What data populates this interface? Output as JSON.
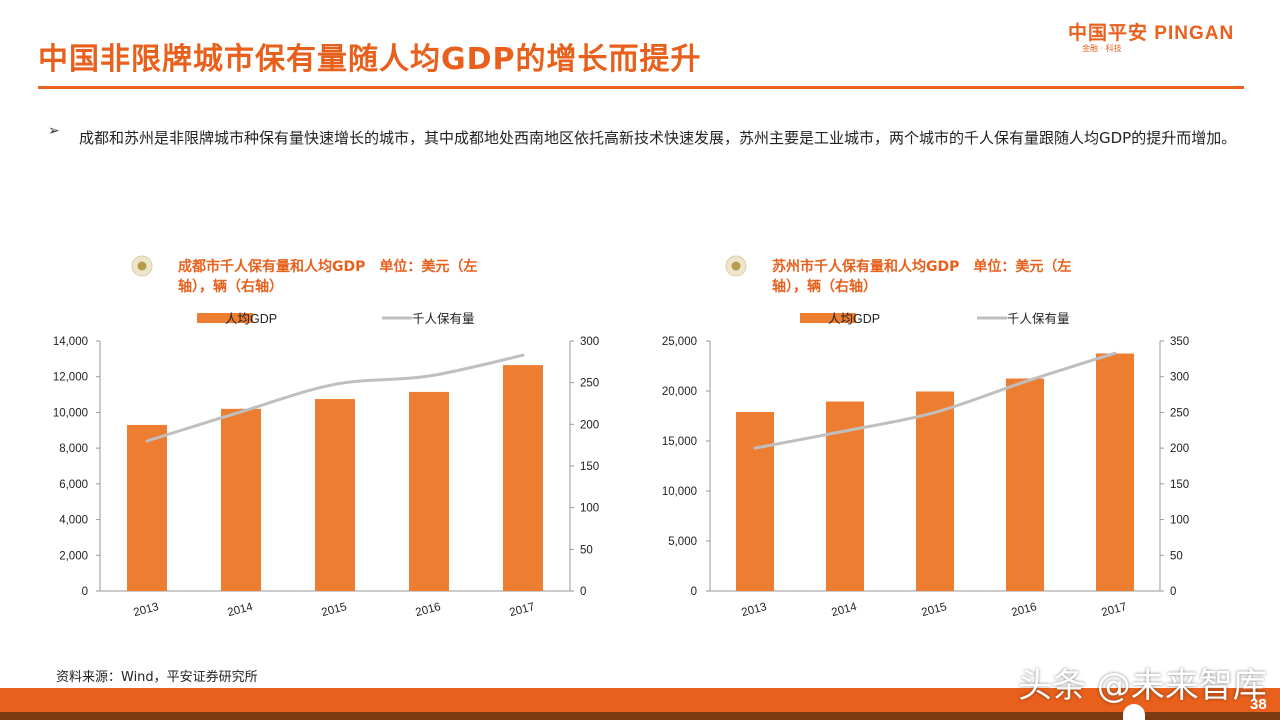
{
  "page": {
    "title": "中国非限牌城市保有量随人均GDP的增长而提升",
    "logo": {
      "main": "中国平安 PINGAN",
      "sub": "金融 · 科技"
    },
    "bullet": "成都和苏州是非限牌城市种保有量快速增长的城市，其中成都地处西南地区依托高新技术快速发展，苏州主要是工业城市，两个城市的千人保有量跟随人均GDP的提升而增加。",
    "source": "资料来源：Wind，平安证券研究所",
    "watermark": "头条 @未来智库",
    "page_number": "38"
  },
  "colors": {
    "accent": "#e8601c",
    "bar": "#ed7d31",
    "line": "#bfbfbf"
  },
  "chart_data": [
    {
      "type": "bar",
      "title": "成都市千人保有量和人均GDP　单位：美元（左轴），辆（右轴）",
      "title_lines": [
        "成都市千人保有量和人均GDP　单位：美元（左",
        "轴），辆（右轴）"
      ],
      "legend": [
        "人均GDP",
        "千人保有量"
      ],
      "categories": [
        "2013",
        "2014",
        "2015",
        "2016",
        "2017"
      ],
      "series": [
        {
          "name": "人均GDP",
          "type": "bar",
          "axis": "left",
          "values": [
            9300,
            10200,
            10750,
            11150,
            12650
          ]
        },
        {
          "name": "千人保有量",
          "type": "line",
          "axis": "right",
          "values": [
            180,
            215,
            248,
            258,
            283
          ]
        }
      ],
      "ylim": [
        0,
        14000
      ],
      "yticks": [
        0,
        2000,
        4000,
        6000,
        8000,
        10000,
        12000,
        14000
      ],
      "ytick_labels": [
        "0",
        "2,000",
        "4,000",
        "6,000",
        "8,000",
        "10,000",
        "12,000",
        "14,000"
      ],
      "y2lim": [
        0,
        300
      ],
      "y2ticks": [
        0,
        50,
        100,
        150,
        200,
        250,
        300
      ],
      "y2tick_labels": [
        "0",
        "50",
        "100",
        "150",
        "200",
        "250",
        "300"
      ],
      "legend_position": "top"
    },
    {
      "type": "bar",
      "title": "苏州市千人保有量和人均GDP　单位：美元（左轴），辆（右轴）",
      "title_lines": [
        "苏州市千人保有量和人均GDP　单位：美元（左",
        "轴），辆（右轴）"
      ],
      "legend": [
        "人均GDP",
        "千人保有量"
      ],
      "categories": [
        "2013",
        "2014",
        "2015",
        "2016",
        "2017"
      ],
      "series": [
        {
          "name": "人均GDP",
          "type": "bar",
          "axis": "left",
          "values": [
            17900,
            18950,
            19950,
            21250,
            23750
          ]
        },
        {
          "name": "千人保有量",
          "type": "line",
          "axis": "right",
          "values": [
            200,
            224,
            250,
            293,
            333
          ]
        }
      ],
      "ylim": [
        0,
        25000
      ],
      "yticks": [
        0,
        5000,
        10000,
        15000,
        20000,
        25000
      ],
      "ytick_labels": [
        "0",
        "5,000",
        "10,000",
        "15,000",
        "20,000",
        "25,000"
      ],
      "y2lim": [
        0,
        350
      ],
      "y2ticks": [
        0,
        50,
        100,
        150,
        200,
        250,
        300,
        350
      ],
      "y2tick_labels": [
        "0",
        "50",
        "100",
        "150",
        "200",
        "250",
        "300",
        "350"
      ],
      "legend_position": "top"
    }
  ]
}
